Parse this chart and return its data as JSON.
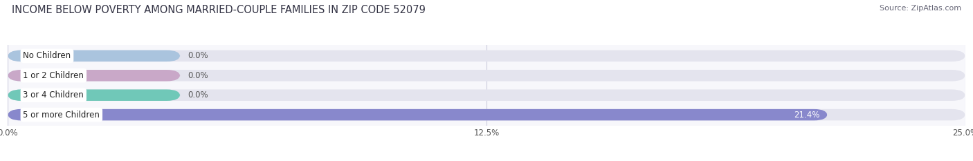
{
  "title": "INCOME BELOW POVERTY AMONG MARRIED-COUPLE FAMILIES IN ZIP CODE 52079",
  "source": "Source: ZipAtlas.com",
  "categories": [
    "No Children",
    "1 or 2 Children",
    "3 or 4 Children",
    "5 or more Children"
  ],
  "values": [
    0.0,
    0.0,
    0.0,
    21.4
  ],
  "bar_colors": [
    "#aac4de",
    "#c9a8c8",
    "#70c8b8",
    "#8888cc"
  ],
  "label_colors": [
    "#555555",
    "#555555",
    "#555555",
    "#ffffff"
  ],
  "xlim": [
    0,
    25.0
  ],
  "xticks": [
    0.0,
    12.5,
    25.0
  ],
  "xtick_labels": [
    "0.0%",
    "12.5%",
    "25.0%"
  ],
  "background_color": "#f7f7fb",
  "bar_bg_color": "#e4e4ee",
  "title_fontsize": 10.5,
  "source_fontsize": 8,
  "bar_height": 0.58,
  "fig_width": 14.06,
  "fig_height": 2.33
}
